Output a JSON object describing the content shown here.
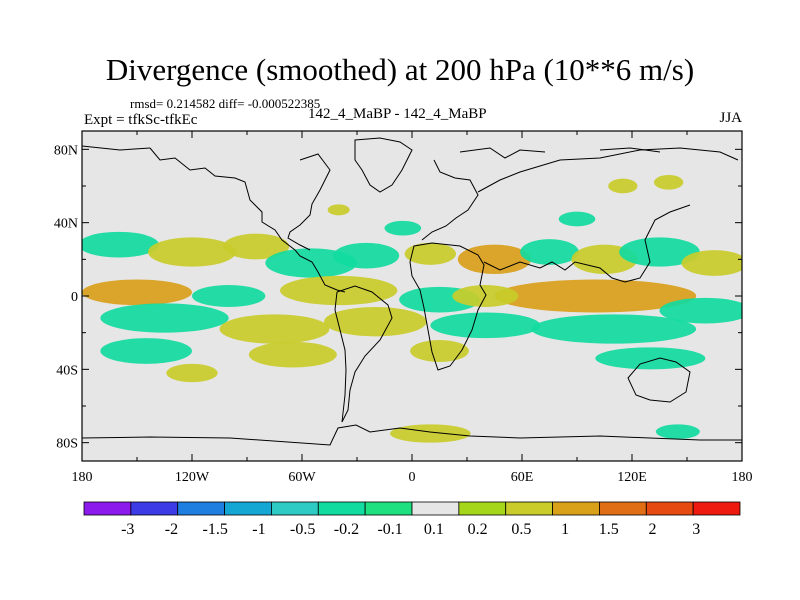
{
  "chart_data": {
    "type": "heatmap",
    "title": "Divergence (smoothed) at 200 hPa (10**6 m/s)",
    "stats_line": "rmsd= 0.214582 diff= -0.000522385",
    "left_label": "Expt = tfkSc-tfkEc",
    "center_label": "142_4_MaBP - 142_4_MaBP",
    "right_label": "JJA",
    "xlim": [
      -180,
      180
    ],
    "ylim": [
      -90,
      90
    ],
    "x_ticks": [
      {
        "value": -180,
        "label": "180"
      },
      {
        "value": -120,
        "label": "120W"
      },
      {
        "value": -60,
        "label": "60W"
      },
      {
        "value": 0,
        "label": "0"
      },
      {
        "value": 60,
        "label": "60E"
      },
      {
        "value": 120,
        "label": "120E"
      },
      {
        "value": 180,
        "label": "180"
      }
    ],
    "y_ticks": [
      {
        "value": 80,
        "label": "80N"
      },
      {
        "value": 40,
        "label": "40N"
      },
      {
        "value": 0,
        "label": "0"
      },
      {
        "value": -40,
        "label": "40S"
      },
      {
        "value": -80,
        "label": "80S"
      }
    ],
    "colorbar": {
      "levels": [
        "-3",
        "-2",
        "-1.5",
        "-1",
        "-0.5",
        "-0.2",
        "-0.1",
        "0.1",
        "0.2",
        "0.5",
        "1",
        "1.5",
        "2",
        "3"
      ],
      "colors": [
        "#8c1aed",
        "#3d3be6",
        "#1e7fe0",
        "#15a7d4",
        "#2ecbc4",
        "#12dba0",
        "#1fe080",
        "#e6e6e6",
        "#a6d61a",
        "#c9cc2a",
        "#d9a01a",
        "#e06e14",
        "#e64a10",
        "#ee1a10"
      ]
    },
    "field_blobs": [
      {
        "lon": -160,
        "lat": 28,
        "rx": 22,
        "ry": 7,
        "value": -0.3
      },
      {
        "lon": -120,
        "lat": 24,
        "rx": 24,
        "ry": 8,
        "value": 0.35
      },
      {
        "lon": -85,
        "lat": 27,
        "rx": 18,
        "ry": 7,
        "value": 0.3
      },
      {
        "lon": -55,
        "lat": 18,
        "rx": 25,
        "ry": 8,
        "value": -0.3
      },
      {
        "lon": -25,
        "lat": 22,
        "rx": 18,
        "ry": 7,
        "value": -0.3
      },
      {
        "lon": 10,
        "lat": 23,
        "rx": 14,
        "ry": 6,
        "value": 0.3
      },
      {
        "lon": 45,
        "lat": 20,
        "rx": 20,
        "ry": 8,
        "value": 0.6
      },
      {
        "lon": 75,
        "lat": 24,
        "rx": 16,
        "ry": 7,
        "value": -0.3
      },
      {
        "lon": 105,
        "lat": 20,
        "rx": 18,
        "ry": 8,
        "value": 0.3
      },
      {
        "lon": 135,
        "lat": 24,
        "rx": 22,
        "ry": 8,
        "value": -0.25
      },
      {
        "lon": 165,
        "lat": 18,
        "rx": 18,
        "ry": 7,
        "value": 0.3
      },
      {
        "lon": -150,
        "lat": 2,
        "rx": 30,
        "ry": 7,
        "value": 0.5
      },
      {
        "lon": -100,
        "lat": 0,
        "rx": 20,
        "ry": 6,
        "value": -0.4
      },
      {
        "lon": -40,
        "lat": 3,
        "rx": 32,
        "ry": 8,
        "value": 0.4
      },
      {
        "lon": 15,
        "lat": -2,
        "rx": 22,
        "ry": 7,
        "value": -0.5
      },
      {
        "lon": 100,
        "lat": 0,
        "rx": 55,
        "ry": 9,
        "value": 0.8
      },
      {
        "lon": 40,
        "lat": 0,
        "rx": 18,
        "ry": 6,
        "value": 0.3
      },
      {
        "lon": 160,
        "lat": -8,
        "rx": 25,
        "ry": 7,
        "value": -0.3
      },
      {
        "lon": -135,
        "lat": -12,
        "rx": 35,
        "ry": 8,
        "value": -0.4
      },
      {
        "lon": -75,
        "lat": -18,
        "rx": 30,
        "ry": 8,
        "value": 0.4
      },
      {
        "lon": -20,
        "lat": -14,
        "rx": 28,
        "ry": 8,
        "value": 0.35
      },
      {
        "lon": 40,
        "lat": -16,
        "rx": 30,
        "ry": 7,
        "value": -0.3
      },
      {
        "lon": 110,
        "lat": -18,
        "rx": 45,
        "ry": 8,
        "value": -0.35
      },
      {
        "lon": -145,
        "lat": -30,
        "rx": 25,
        "ry": 7,
        "value": -0.3
      },
      {
        "lon": -65,
        "lat": -32,
        "rx": 24,
        "ry": 7,
        "value": 0.25
      },
      {
        "lon": 15,
        "lat": -30,
        "rx": 16,
        "ry": 6,
        "value": 0.25
      },
      {
        "lon": 130,
        "lat": -34,
        "rx": 30,
        "ry": 6,
        "value": -0.3
      },
      {
        "lon": -120,
        "lat": -42,
        "rx": 14,
        "ry": 5,
        "value": 0.25
      },
      {
        "lon": 10,
        "lat": -75,
        "rx": 22,
        "ry": 5,
        "value": 0.3
      },
      {
        "lon": 145,
        "lat": -74,
        "rx": 12,
        "ry": 4,
        "value": -0.25
      },
      {
        "lon": 115,
        "lat": 60,
        "rx": 8,
        "ry": 4,
        "value": 0.3
      },
      {
        "lon": 140,
        "lat": 62,
        "rx": 8,
        "ry": 4,
        "value": 0.3
      },
      {
        "lon": -40,
        "lat": 47,
        "rx": 6,
        "ry": 3,
        "value": 0.3
      },
      {
        "lon": 90,
        "lat": 42,
        "rx": 10,
        "ry": 4,
        "value": -0.25
      },
      {
        "lon": -5,
        "lat": 37,
        "rx": 10,
        "ry": 4,
        "value": -0.25
      }
    ]
  }
}
